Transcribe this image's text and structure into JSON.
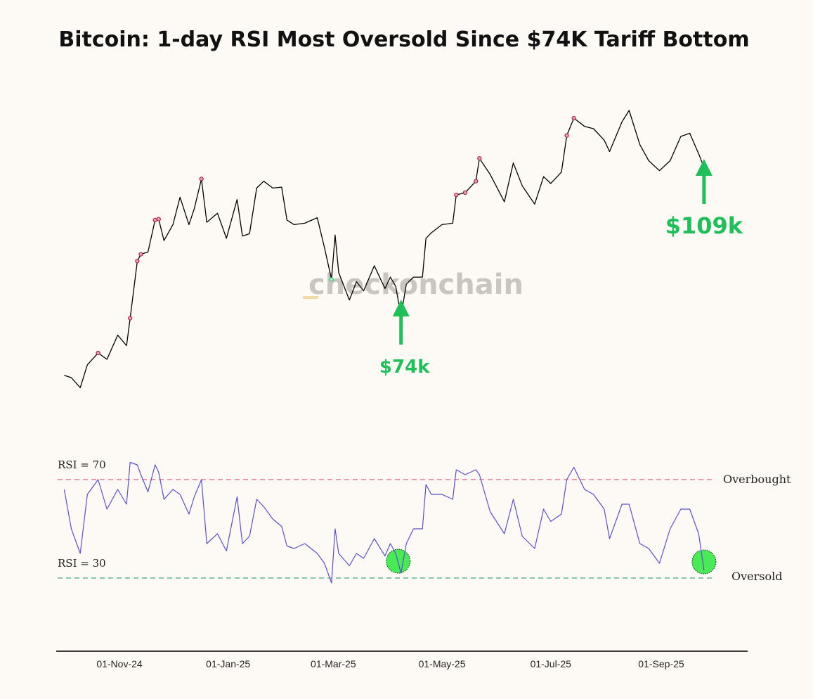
{
  "chart_data": {
    "type": "line",
    "title": "Bitcoin: 1-day RSI Most Oversold Since $74K Tariff Bottom",
    "x_ticks": [
      "01-Nov-24",
      "01-Jan-25",
      "01-Mar-25",
      "01-May-25",
      "01-Jul-25",
      "01-Sep-25"
    ],
    "watermark": "checkonchain",
    "callouts": [
      {
        "date": "2025-04-08",
        "label": "$74k"
      },
      {
        "date": "2025-09-25",
        "label": "$109k"
      }
    ],
    "reference_lines": [
      {
        "label": "RSI = 70",
        "value": 70,
        "color": "#e0607e",
        "zone_label": "Overbought"
      },
      {
        "label": "RSI = 30",
        "value": 30,
        "color": "#4aa58a",
        "zone_label": "Oversold"
      }
    ],
    "colors": {
      "price": "#000000",
      "rsi": "#5a4fcf",
      "overbought_marker": "#a01030",
      "oversold_marker": "#1fc05a"
    },
    "series": [
      {
        "panel": "price",
        "x": [
          "2024-10-01",
          "2024-10-05",
          "2024-10-10",
          "2024-10-14",
          "2024-10-20",
          "2024-10-25",
          "2024-10-31",
          "2024-11-05",
          "2024-11-07",
          "2024-11-11",
          "2024-11-13",
          "2024-11-17",
          "2024-11-21",
          "2024-11-23",
          "2024-11-26",
          "2024-12-01",
          "2024-12-05",
          "2024-12-10",
          "2024-12-13",
          "2024-12-17",
          "2024-12-20",
          "2024-12-26",
          "2024-12-31",
          "2025-01-06",
          "2025-01-09",
          "2025-01-13",
          "2025-01-17",
          "2025-01-21",
          "2025-01-26",
          "2025-01-31",
          "2025-02-03",
          "2025-02-07",
          "2025-02-13",
          "2025-02-20",
          "2025-02-24",
          "2025-02-28",
          "2025-03-02",
          "2025-03-04",
          "2025-03-10",
          "2025-03-14",
          "2025-03-18",
          "2025-03-24",
          "2025-03-30",
          "2025-04-02",
          "2025-04-05",
          "2025-04-08",
          "2025-04-11",
          "2025-04-15",
          "2025-04-20",
          "2025-04-22",
          "2025-04-25",
          "2025-05-01",
          "2025-05-07",
          "2025-05-09",
          "2025-05-14",
          "2025-05-20",
          "2025-05-22",
          "2025-05-28",
          "2025-06-05",
          "2025-06-10",
          "2025-06-15",
          "2025-06-22",
          "2025-06-27",
          "2025-07-01",
          "2025-07-07",
          "2025-07-10",
          "2025-07-14",
          "2025-07-20",
          "2025-07-25",
          "2025-07-31",
          "2025-08-03",
          "2025-08-10",
          "2025-08-14",
          "2025-08-20",
          "2025-08-25",
          "2025-08-31",
          "2025-09-06",
          "2025-09-12",
          "2025-09-17",
          "2025-09-22",
          "2025-09-25"
        ],
        "values": [
          63500,
          63000,
          60800,
          65800,
          68400,
          67000,
          72300,
          70000,
          76000,
          88500,
          90000,
          90500,
          97500,
          97700,
          93000,
          96500,
          102500,
          96500,
          100000,
          106500,
          97000,
          99000,
          93500,
          102000,
          94000,
          94500,
          104500,
          106000,
          104500,
          104700,
          97500,
          96500,
          96800,
          98000,
          91500,
          84500,
          94200,
          86000,
          80000,
          84000,
          82000,
          87500,
          82500,
          85000,
          83000,
          76500,
          83500,
          85000,
          85000,
          93500,
          94700,
          96500,
          96800,
          103000,
          103500,
          106000,
          111000,
          107500,
          101500,
          110000,
          105000,
          101000,
          107000,
          105500,
          108000,
          116000,
          119800,
          118000,
          117500,
          115000,
          112500,
          119000,
          121500,
          114000,
          110500,
          108300,
          110500,
          115800,
          116500,
          112000,
          109000
        ]
      },
      {
        "panel": "rsi",
        "name": "",
        "x": [
          "2024-10-01",
          "2024-10-05",
          "2024-10-10",
          "2024-10-14",
          "2024-10-20",
          "2024-10-25",
          "2024-10-31",
          "2024-11-05",
          "2024-11-07",
          "2024-11-11",
          "2024-11-13",
          "2024-11-17",
          "2024-11-21",
          "2024-11-23",
          "2024-11-26",
          "2024-12-01",
          "2024-12-05",
          "2024-12-10",
          "2024-12-13",
          "2024-12-17",
          "2024-12-20",
          "2024-12-26",
          "2024-12-31",
          "2025-01-06",
          "2025-01-09",
          "2025-01-13",
          "2025-01-17",
          "2025-01-21",
          "2025-01-26",
          "2025-01-31",
          "2025-02-03",
          "2025-02-07",
          "2025-02-13",
          "2025-02-20",
          "2025-02-24",
          "2025-02-28",
          "2025-03-02",
          "2025-03-04",
          "2025-03-10",
          "2025-03-14",
          "2025-03-18",
          "2025-03-24",
          "2025-03-30",
          "2025-04-02",
          "2025-04-05",
          "2025-04-08",
          "2025-04-11",
          "2025-04-15",
          "2025-04-20",
          "2025-04-22",
          "2025-04-25",
          "2025-05-01",
          "2025-05-07",
          "2025-05-09",
          "2025-05-14",
          "2025-05-20",
          "2025-05-22",
          "2025-05-28",
          "2025-06-05",
          "2025-06-10",
          "2025-06-15",
          "2025-06-22",
          "2025-06-27",
          "2025-07-01",
          "2025-07-07",
          "2025-07-10",
          "2025-07-14",
          "2025-07-20",
          "2025-07-25",
          "2025-07-31",
          "2025-08-03",
          "2025-08-10",
          "2025-08-14",
          "2025-08-20",
          "2025-08-25",
          "2025-08-31",
          "2025-09-06",
          "2025-09-12",
          "2025-09-17",
          "2025-09-22",
          "2025-09-25"
        ],
        "values": [
          66,
          50,
          40,
          64,
          70,
          58,
          66,
          60,
          77,
          76,
          72,
          65,
          76,
          73,
          62,
          66,
          64,
          56,
          63,
          70,
          44,
          48,
          41,
          63,
          44,
          47,
          62,
          59,
          54,
          51,
          43,
          42,
          44,
          40,
          36,
          28,
          50,
          40,
          35,
          40,
          38,
          46,
          39,
          44,
          40,
          32,
          44,
          50,
          50,
          68,
          64,
          64,
          62,
          74,
          72,
          74,
          72,
          57,
          48,
          62,
          47,
          42,
          58,
          53,
          56,
          70,
          75,
          66,
          64,
          58,
          46,
          60,
          60,
          44,
          42,
          36,
          50,
          58,
          58,
          48,
          33
        ]
      }
    ]
  }
}
